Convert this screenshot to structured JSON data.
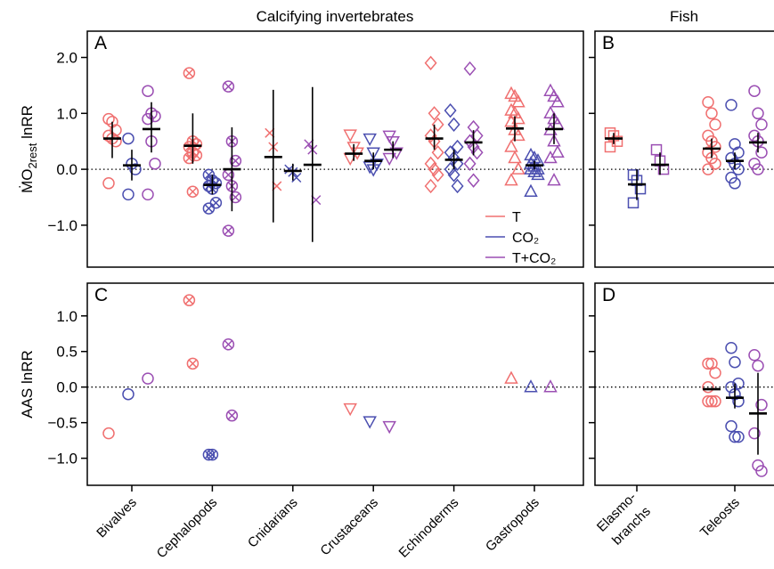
{
  "chart_data": [
    {
      "type": "strip",
      "panel": "A",
      "title": "Calcifying invertebrates",
      "ylabel": {
        "main": "ṀO",
        "sub": "2rest",
        "tail": " lnRR"
      },
      "ylim": [
        -1.75,
        2.47
      ],
      "yticks": [
        {
          "value": -1,
          "label": "−1.0"
        },
        {
          "value": 0,
          "label": "0.0"
        },
        {
          "value": 1,
          "label": "1.0"
        },
        {
          "value": 2,
          "label": "2.0"
        }
      ],
      "hline": 0,
      "legend": "lower right",
      "markers": [
        "circle",
        "circle-x",
        "x",
        "triangle-down",
        "diamond",
        "triangle"
      ],
      "series": [
        {
          "name": "T",
          "color": "#f07070",
          "values": [
            [
              0.9,
              0.85,
              0.7,
              0.6,
              0.55,
              0.5,
              -0.25
            ],
            [
              1.72,
              0.5,
              0.45,
              0.4,
              0.3,
              0.25,
              0.2,
              -0.4
            ],
            [
              0.65,
              0.4,
              -0.3
            ],
            [
              0.62,
              0.4,
              0.3,
              0.2
            ],
            [
              1.9,
              1.0,
              0.8,
              0.6,
              0.5,
              0.3,
              0.1,
              0.0,
              -0.1,
              -0.3
            ],
            [
              1.35,
              1.3,
              1.2,
              1.05,
              1.0,
              0.9,
              0.85,
              0.7,
              0.6,
              0.4,
              0.2,
              0.0,
              -0.2
            ]
          ],
          "means": [
            0.55,
            0.42,
            0.22,
            0.28,
            0.55,
            0.73
          ],
          "ci_low": [
            0.2,
            0.1,
            -0.95,
            0.15,
            0.35,
            0.5
          ],
          "ci_high": [
            0.85,
            1.0,
            1.42,
            0.45,
            0.8,
            0.95
          ]
        },
        {
          "name": "CO₂",
          "color": "#4b4fb0",
          "values": [
            [
              0.55,
              0.1,
              0.0,
              -0.45
            ],
            [
              -0.1,
              -0.2,
              -0.25,
              -0.3,
              -0.35,
              -0.6,
              -0.7
            ],
            [
              0.0,
              -0.05,
              -0.15
            ],
            [
              0.55,
              0.3,
              0.1,
              0.05,
              0.0
            ],
            [
              1.05,
              0.8,
              0.4,
              0.3,
              0.2,
              0.1,
              0.0,
              -0.1,
              -0.3
            ],
            [
              0.25,
              0.2,
              0.15,
              0.1,
              0.05,
              0.0,
              0.0,
              -0.05,
              -0.1,
              -0.4
            ]
          ],
          "means": [
            0.07,
            -0.28,
            -0.03,
            0.15,
            0.17,
            0.07
          ],
          "ci_low": [
            -0.2,
            -0.45,
            -0.2,
            0.0,
            0.0,
            0.0
          ],
          "ci_high": [
            0.35,
            -0.1,
            0.1,
            0.3,
            0.35,
            0.15
          ]
        },
        {
          "name": "T+CO₂",
          "color": "#9b4fb3",
          "values": [
            [
              1.4,
              1.0,
              0.95,
              0.9,
              0.5,
              0.1,
              -0.45
            ],
            [
              1.48,
              0.5,
              0.15,
              -0.1,
              -0.3,
              -0.5,
              -1.1
            ],
            [
              0.45,
              0.35,
              -0.55
            ],
            [
              0.6,
              0.5,
              0.3,
              0.2
            ],
            [
              1.8,
              0.75,
              0.6,
              0.5,
              0.4,
              0.3,
              0.1,
              -0.2
            ],
            [
              1.4,
              1.3,
              1.2,
              1.0,
              0.9,
              0.8,
              0.7,
              0.5,
              0.3,
              0.2,
              -0.2
            ]
          ],
          "means": [
            0.72,
            0.0,
            0.08,
            0.35,
            0.48,
            0.72
          ],
          "ci_low": [
            0.3,
            -0.75,
            -1.3,
            0.2,
            0.25,
            0.45
          ],
          "ci_high": [
            1.2,
            0.75,
            1.47,
            0.5,
            0.7,
            1.0
          ]
        }
      ]
    },
    {
      "type": "strip",
      "panel": "B",
      "title": "Fish",
      "ylim": [
        -1.75,
        2.47
      ],
      "yticks": [
        -1,
        0,
        1,
        2
      ],
      "hline": 0,
      "markers": [
        "square",
        "circle"
      ],
      "series": [
        {
          "color": "#f07070",
          "values": [
            [
              0.65,
              0.6,
              0.5,
              0.4
            ],
            [
              1.2,
              1.0,
              0.8,
              0.6,
              0.5,
              0.4,
              0.3,
              0.2,
              0.1,
              0.0
            ]
          ],
          "means": [
            0.55,
            0.37
          ],
          "ci_low": [
            0.45,
            0.2
          ],
          "ci_high": [
            0.65,
            0.55
          ]
        },
        {
          "color": "#4b4fb0",
          "values": [
            [
              -0.1,
              -0.2,
              -0.35,
              -0.6
            ],
            [
              1.15,
              0.45,
              0.3,
              0.2,
              0.1,
              0.0,
              -0.15,
              -0.25
            ]
          ],
          "means": [
            -0.27,
            0.15
          ],
          "ci_low": [
            -0.55,
            0.0
          ],
          "ci_high": [
            0.0,
            0.3
          ]
        },
        {
          "color": "#9b4fb3",
          "values": [
            [
              0.35,
              0.15,
              0.0
            ],
            [
              1.4,
              1.0,
              0.8,
              0.6,
              0.5,
              0.3,
              0.1,
              0.0
            ]
          ],
          "means": [
            0.08,
            0.48
          ],
          "ci_low": [
            -0.1,
            0.3
          ],
          "ci_high": [
            0.3,
            0.65
          ]
        }
      ]
    },
    {
      "type": "strip",
      "panel": "C",
      "ylabel": {
        "main": "AAS lnRR"
      },
      "categories": [
        "Bivalves",
        "Cephalopods",
        "Cnidarians",
        "Crustaceans",
        "Echinoderms",
        "Gastropods"
      ],
      "ylim": [
        -1.38,
        1.46
      ],
      "yticks": [
        {
          "value": -1,
          "label": "−1.0"
        },
        {
          "value": -0.5,
          "label": "−0.5"
        },
        {
          "value": 0,
          "label": "0.0"
        },
        {
          "value": 0.5,
          "label": "0.5"
        },
        {
          "value": 1,
          "label": "1.0"
        }
      ],
      "hline": 0,
      "markers": [
        "circle",
        "circle-x",
        "x",
        "triangle-down",
        "diamond",
        "triangle"
      ],
      "series": [
        {
          "color": "#f07070",
          "values": [
            [
              -0.65
            ],
            [
              1.22,
              0.33
            ],
            [],
            [
              -0.3
            ],
            [],
            [
              0.12
            ]
          ]
        },
        {
          "color": "#4b4fb0",
          "values": [
            [
              -0.1
            ],
            [
              -0.95,
              -0.95
            ],
            [],
            [
              -0.48
            ],
            [],
            [
              0.0
            ]
          ]
        },
        {
          "color": "#9b4fb3",
          "values": [
            [
              0.12
            ],
            [
              0.6,
              -0.4
            ],
            [],
            [
              -0.55
            ],
            [],
            [
              0.0
            ]
          ]
        }
      ]
    },
    {
      "type": "strip",
      "panel": "D",
      "categories": [
        [
          "Elasmo-",
          "branchs"
        ],
        "Teleosts"
      ],
      "ylim": [
        -1.38,
        1.46
      ],
      "yticks": [
        -1,
        -0.5,
        0,
        0.5,
        1
      ],
      "hline": 0,
      "markers": [
        "square",
        "circle"
      ],
      "series": [
        {
          "color": "#f07070",
          "values": [
            [],
            [
              0.33,
              0.33,
              0.2,
              0.0,
              -0.2,
              -0.2,
              -0.2
            ]
          ],
          "means": [
            null,
            -0.03
          ],
          "ci_low": [
            null,
            null
          ],
          "ci_high": [
            null,
            null
          ]
        },
        {
          "color": "#4b4fb0",
          "values": [
            [],
            [
              0.55,
              0.35,
              0.05,
              0.0,
              -0.1,
              -0.2,
              -0.55,
              -0.7,
              -0.7
            ]
          ],
          "means": [
            null,
            -0.15
          ],
          "ci_low": [
            null,
            -0.3
          ],
          "ci_high": [
            null,
            0.05
          ]
        },
        {
          "color": "#9b4fb3",
          "values": [
            [],
            [
              0.45,
              0.3,
              -0.25,
              -0.65,
              -1.1,
              -1.18
            ]
          ],
          "means": [
            null,
            -0.37
          ],
          "ci_low": [
            null,
            -0.95
          ],
          "ci_high": [
            null,
            0.2
          ]
        }
      ]
    }
  ]
}
